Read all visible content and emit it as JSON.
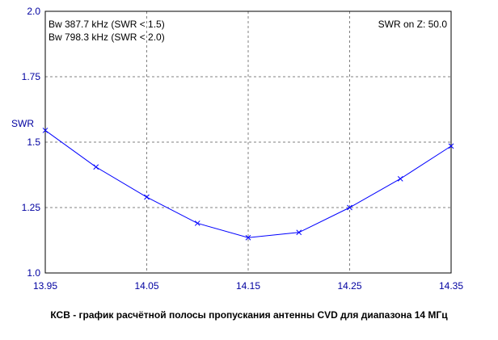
{
  "chart_data": {
    "type": "line",
    "title": "",
    "caption": "КСВ - график расчётной полосы пропускания антенны CVD для диапазона 14 МГц",
    "xlabel": "",
    "ylabel": "SWR",
    "xlim": [
      13.95,
      14.35
    ],
    "ylim": [
      1.0,
      2.0
    ],
    "x_ticks": [
      "13.95",
      "14.05",
      "14.15",
      "14.25",
      "14.35"
    ],
    "y_ticks": [
      "1.0",
      "1.25",
      "1.5",
      "1.75",
      "2.0"
    ],
    "grid": true,
    "series": [
      {
        "name": "",
        "color": "#0000ff",
        "marker": "x",
        "points": [
          {
            "x": 13.95,
            "y": 1.545
          },
          {
            "x": 14.0,
            "y": 1.405
          },
          {
            "x": 14.05,
            "y": 1.29
          },
          {
            "x": 14.1,
            "y": 1.19
          },
          {
            "x": 14.15,
            "y": 1.135
          },
          {
            "x": 14.2,
            "y": 1.155
          },
          {
            "x": 14.25,
            "y": 1.25
          },
          {
            "x": 14.3,
            "y": 1.36
          },
          {
            "x": 14.35,
            "y": 1.485
          }
        ]
      }
    ],
    "annotations": {
      "bw1": "Bw 387.7 kHz (SWR < 1.5)",
      "bw2": "Bw 798.3 kHz (SWR < 2.0)",
      "swr_on_z": "SWR on Z: 50.0"
    }
  }
}
